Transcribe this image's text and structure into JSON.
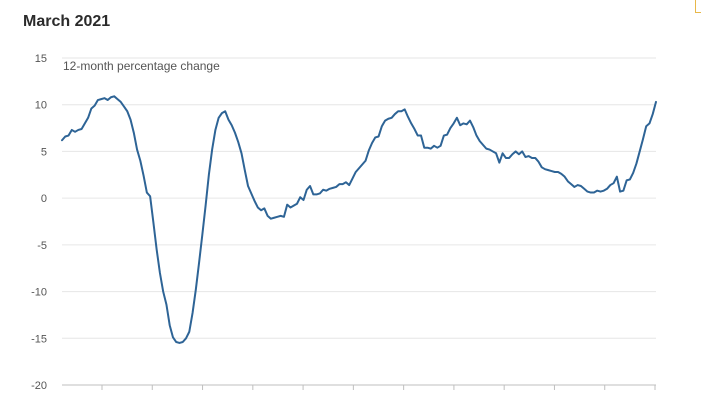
{
  "page": {
    "title": "March 2021"
  },
  "colors": {
    "line": "#2e6496",
    "grid": "#e6e6e6",
    "axis": "#bfbfbf"
  },
  "chart_data": {
    "type": "line",
    "title": "March 2021",
    "xlabel": "",
    "ylabel": "12-month percentage change",
    "ylim": [
      -20,
      15
    ],
    "yticks": [
      15,
      10,
      5,
      0,
      -5,
      -10,
      -15,
      -20
    ],
    "grid": true,
    "legend": "none",
    "x_tick_count": 12,
    "series": [
      {
        "values": [
          6.2,
          6.6,
          6.7,
          7.3,
          7.1,
          7.3,
          7.4,
          8.0,
          8.6,
          9.6,
          9.9,
          10.5,
          10.6,
          10.7,
          10.5,
          10.8,
          10.9,
          10.6,
          10.3,
          9.8,
          9.3,
          8.4,
          7.0,
          5.2,
          4.0,
          2.4,
          0.6,
          0.2,
          -2.6,
          -5.5,
          -8.0,
          -10.0,
          -11.4,
          -13.6,
          -14.9,
          -15.4,
          -15.5,
          -15.4,
          -15.0,
          -14.3,
          -12.3,
          -9.8,
          -6.9,
          -3.9,
          -0.8,
          2.5,
          5.2,
          7.3,
          8.6,
          9.1,
          9.3,
          8.4,
          7.8,
          7.0,
          6.0,
          4.8,
          3.0,
          1.3,
          0.5,
          -0.3,
          -1.0,
          -1.3,
          -1.1,
          -1.9,
          -2.2,
          -2.1,
          -2.0,
          -1.9,
          -2.0,
          -0.7,
          -1.0,
          -0.8,
          -0.6,
          0.1,
          -0.2,
          0.9,
          1.3,
          0.4,
          0.4,
          0.5,
          0.9,
          0.8,
          1.0,
          1.1,
          1.2,
          1.5,
          1.5,
          1.7,
          1.4,
          2.1,
          2.8,
          3.2,
          3.6,
          4.0,
          5.1,
          5.9,
          6.5,
          6.6,
          7.7,
          8.3,
          8.5,
          8.6,
          9.0,
          9.3,
          9.3,
          9.5,
          8.7,
          8.0,
          7.4,
          6.7,
          6.7,
          5.4,
          5.4,
          5.3,
          5.6,
          5.4,
          5.6,
          6.7,
          6.8,
          7.5,
          8.0,
          8.6,
          7.8,
          8.0,
          7.9,
          8.3,
          7.6,
          6.7,
          6.1,
          5.7,
          5.3,
          5.2,
          5.0,
          4.8,
          3.8,
          4.8,
          4.3,
          4.3,
          4.7,
          5.0,
          4.7,
          5.0,
          4.4,
          4.5,
          4.3,
          4.3,
          3.9,
          3.3,
          3.1,
          3.0,
          2.9,
          2.8,
          2.8,
          2.6,
          2.3,
          1.8,
          1.5,
          1.2,
          1.4,
          1.3,
          1.0,
          0.7,
          0.6,
          0.6,
          0.8,
          0.7,
          0.8,
          1.0,
          1.4,
          1.6,
          2.3,
          0.7,
          0.8,
          1.9,
          2.0,
          2.7,
          3.7,
          5.0,
          6.3,
          7.7,
          8.0,
          9.0,
          10.3
        ]
      }
    ]
  }
}
